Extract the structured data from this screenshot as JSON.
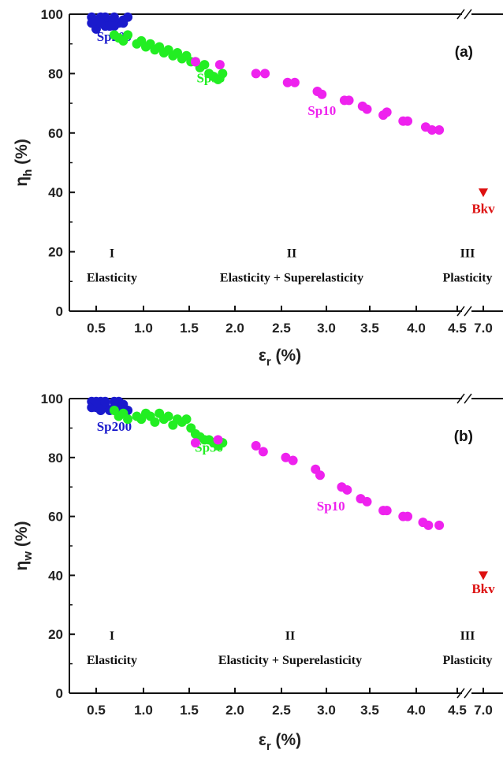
{
  "chart_data": [
    {
      "type": "scatter",
      "panel_label": "(a)",
      "xlabel": "εr (%)",
      "ylabel": "ηh (%)",
      "x_tick_labels": [
        "0.5",
        "1.0",
        "1.5",
        "2.0",
        "2.5",
        "3.0",
        "3.5",
        "4.0",
        "4.5",
        "7.0"
      ],
      "ylim": [
        0,
        100
      ],
      "y_ticks": [
        0,
        20,
        40,
        60,
        80,
        100
      ],
      "axis_break": "between 4.5 and 7.0",
      "regions": [
        {
          "numeral": "I",
          "name": "Elasticity",
          "x": 0.6
        },
        {
          "numeral": "II",
          "name": "Elasticity + Superelasticity",
          "x": 2.8
        },
        {
          "numeral": "III",
          "name": "Plasticity",
          "x": 7.0
        }
      ],
      "series": [
        {
          "name": "Sp200",
          "color": "#1a1acc",
          "marker": "circle",
          "label_pos": [
            0.7,
            91
          ],
          "points": [
            [
              0.45,
              99
            ],
            [
              0.5,
              97
            ],
            [
              0.55,
              99
            ],
            [
              0.6,
              96
            ],
            [
              0.5,
              95
            ],
            [
              0.65,
              98
            ],
            [
              0.7,
              99
            ],
            [
              0.75,
              97
            ],
            [
              0.8,
              98
            ],
            [
              0.85,
              99
            ],
            [
              0.45,
              97
            ],
            [
              0.6,
              99
            ],
            [
              0.55,
              97
            ],
            [
              0.7,
              96
            ],
            [
              0.8,
              97
            ],
            [
              0.5,
              98
            ],
            [
              0.65,
              96
            ]
          ]
        },
        {
          "name": "Sp50",
          "color": "#22ee22",
          "marker": "circle",
          "label_pos": [
            1.77,
            77
          ],
          "points": [
            [
              0.7,
              93
            ],
            [
              0.75,
              92
            ],
            [
              0.8,
              91
            ],
            [
              0.85,
              93
            ],
            [
              0.95,
              90
            ],
            [
              1.0,
              91
            ],
            [
              1.05,
              89
            ],
            [
              1.1,
              90
            ],
            [
              1.15,
              88
            ],
            [
              1.2,
              89
            ],
            [
              1.25,
              87
            ],
            [
              1.3,
              88
            ],
            [
              1.35,
              86
            ],
            [
              1.4,
              87
            ],
            [
              1.45,
              85
            ],
            [
              1.5,
              86
            ],
            [
              1.55,
              84
            ],
            [
              1.6,
              84
            ],
            [
              1.65,
              82
            ],
            [
              1.7,
              83
            ],
            [
              1.75,
              80
            ],
            [
              1.8,
              79
            ],
            [
              1.85,
              78
            ],
            [
              1.9,
              80
            ]
          ]
        },
        {
          "name": "Sp10",
          "color": "#ee22ee",
          "marker": "circle",
          "label_pos": [
            3.0,
            66
          ],
          "points": [
            [
              1.6,
              84
            ],
            [
              1.87,
              83
            ],
            [
              2.27,
              80
            ],
            [
              2.37,
              80
            ],
            [
              2.62,
              77
            ],
            [
              2.7,
              77
            ],
            [
              2.95,
              74
            ],
            [
              3.0,
              73
            ],
            [
              3.25,
              71
            ],
            [
              3.3,
              71
            ],
            [
              3.45,
              69
            ],
            [
              3.5,
              68
            ],
            [
              3.68,
              66
            ],
            [
              3.72,
              67
            ],
            [
              3.9,
              64
            ],
            [
              3.95,
              64
            ],
            [
              4.15,
              62
            ],
            [
              4.22,
              61
            ],
            [
              4.3,
              61
            ]
          ]
        },
        {
          "name": "Bkv",
          "color": "#dd1111",
          "marker": "triangle-down",
          "label_pos": [
            7.0,
            33
          ],
          "points": [
            [
              7.0,
              40
            ]
          ]
        }
      ]
    },
    {
      "type": "scatter",
      "panel_label": "(b)",
      "xlabel": "εr (%)",
      "ylabel": "ηw (%)",
      "x_tick_labels": [
        "0.5",
        "1.0",
        "1.5",
        "2.0",
        "2.5",
        "3.0",
        "3.5",
        "4.0",
        "4.5",
        "7.0"
      ],
      "ylim": [
        0,
        100
      ],
      "y_ticks": [
        0,
        20,
        40,
        60,
        80,
        100
      ],
      "axis_break": "between 4.5 and 7.0",
      "regions": [
        {
          "numeral": "I",
          "name": "Elasticity",
          "x": 0.6
        },
        {
          "numeral": "II",
          "name": "Elasticity + Superelasticity",
          "x": 2.8
        },
        {
          "numeral": "III",
          "name": "Plasticity",
          "x": 7.0
        }
      ],
      "series": [
        {
          "name": "Sp200",
          "color": "#1a1acc",
          "marker": "circle",
          "label_pos": [
            0.7,
            89
          ],
          "points": [
            [
              0.45,
              99
            ],
            [
              0.5,
              97
            ],
            [
              0.55,
              99
            ],
            [
              0.6,
              98
            ],
            [
              0.65,
              96
            ],
            [
              0.7,
              99
            ],
            [
              0.75,
              97
            ],
            [
              0.8,
              98
            ],
            [
              0.85,
              96
            ],
            [
              0.45,
              97
            ],
            [
              0.55,
              96
            ],
            [
              0.6,
              99
            ],
            [
              0.75,
              99
            ],
            [
              0.5,
              99
            ],
            [
              0.7,
              97
            ]
          ]
        },
        {
          "name": "Sp50",
          "color": "#22ee22",
          "marker": "circle",
          "label_pos": [
            1.75,
            82
          ],
          "points": [
            [
              0.7,
              96
            ],
            [
              0.75,
              94
            ],
            [
              0.8,
              95
            ],
            [
              0.85,
              93
            ],
            [
              0.95,
              94
            ],
            [
              1.0,
              93
            ],
            [
              1.05,
              95
            ],
            [
              1.1,
              94
            ],
            [
              1.15,
              92
            ],
            [
              1.2,
              95
            ],
            [
              1.25,
              93
            ],
            [
              1.3,
              94
            ],
            [
              1.35,
              91
            ],
            [
              1.4,
              93
            ],
            [
              1.45,
              92
            ],
            [
              1.5,
              93
            ],
            [
              1.55,
              90
            ],
            [
              1.6,
              88
            ],
            [
              1.65,
              87
            ],
            [
              1.7,
              86
            ],
            [
              1.75,
              86
            ],
            [
              1.8,
              85
            ],
            [
              1.85,
              84
            ],
            [
              1.9,
              85
            ]
          ]
        },
        {
          "name": "Sp10",
          "color": "#ee22ee",
          "marker": "circle",
          "label_pos": [
            3.1,
            62
          ],
          "points": [
            [
              1.6,
              85
            ],
            [
              1.85,
              86
            ],
            [
              2.27,
              84
            ],
            [
              2.35,
              82
            ],
            [
              2.6,
              80
            ],
            [
              2.68,
              79
            ],
            [
              2.93,
              76
            ],
            [
              2.98,
              74
            ],
            [
              3.22,
              70
            ],
            [
              3.28,
              69
            ],
            [
              3.43,
              66
            ],
            [
              3.5,
              65
            ],
            [
              3.68,
              62
            ],
            [
              3.72,
              62
            ],
            [
              3.9,
              60
            ],
            [
              3.95,
              60
            ],
            [
              4.12,
              58
            ],
            [
              4.18,
              57
            ],
            [
              4.3,
              57
            ]
          ]
        },
        {
          "name": "Bkv",
          "color": "#dd1111",
          "marker": "triangle-down",
          "label_pos": [
            7.0,
            34
          ],
          "points": [
            [
              7.0,
              40
            ]
          ]
        }
      ]
    }
  ]
}
